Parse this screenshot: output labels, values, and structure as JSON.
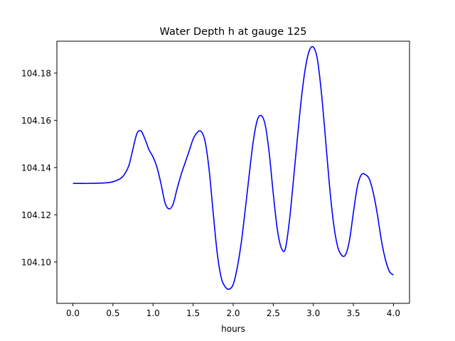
{
  "chart_data": {
    "type": "line",
    "title": "Water Depth h at gauge 125",
    "xlabel": "hours",
    "ylabel": "",
    "xlim": [
      -0.2,
      4.2
    ],
    "ylim": [
      104.0825,
      104.1935
    ],
    "xticks": [
      0.0,
      0.5,
      1.0,
      1.5,
      2.0,
      2.5,
      3.0,
      3.5,
      4.0
    ],
    "xtick_labels": [
      "0.0",
      "0.5",
      "1.0",
      "1.5",
      "2.0",
      "2.5",
      "3.0",
      "3.5",
      "4.0"
    ],
    "yticks": [
      104.1,
      104.12,
      104.14,
      104.16,
      104.18
    ],
    "ytick_labels": [
      "104.10",
      "104.12",
      "104.14",
      "104.16",
      "104.18"
    ],
    "grid": false,
    "line_color": "#0000ff",
    "series": [
      {
        "x": [
          0.0,
          0.2,
          0.4,
          0.5,
          0.6,
          0.65,
          0.7,
          0.75,
          0.8,
          0.85,
          0.9,
          0.95,
          1.0,
          1.05,
          1.1,
          1.15,
          1.2,
          1.25,
          1.3,
          1.35,
          1.4,
          1.45,
          1.5,
          1.55,
          1.6,
          1.65,
          1.7,
          1.75,
          1.8,
          1.85,
          1.9,
          1.95,
          2.0,
          2.05,
          2.1,
          2.15,
          2.2,
          2.25,
          2.3,
          2.35,
          2.4,
          2.45,
          2.5,
          2.55,
          2.6,
          2.65,
          2.7,
          2.75,
          2.8,
          2.85,
          2.9,
          2.95,
          3.0,
          3.05,
          3.1,
          3.15,
          3.2,
          3.25,
          3.3,
          3.35,
          3.4,
          3.45,
          3.5,
          3.55,
          3.6,
          3.65,
          3.7,
          3.75,
          3.8,
          3.85,
          3.9,
          3.95,
          4.0
        ],
        "y": [
          104.1333,
          104.1333,
          104.1335,
          104.134,
          104.1355,
          104.1375,
          104.141,
          104.148,
          104.1545,
          104.1555,
          104.152,
          104.1475,
          104.1445,
          104.14,
          104.133,
          104.125,
          104.1225,
          104.1245,
          104.131,
          104.137,
          104.142,
          104.147,
          104.152,
          104.1548,
          104.1553,
          104.151,
          104.139,
          104.121,
          104.104,
          104.0935,
          104.0895,
          104.0885,
          104.0905,
          104.0975,
          104.108,
          104.122,
          104.137,
          104.151,
          104.16,
          104.162,
          104.158,
          104.146,
          104.129,
          104.114,
          104.106,
          104.1055,
          104.117,
          104.134,
          104.152,
          104.169,
          104.182,
          104.1895,
          104.191,
          104.186,
          104.172,
          104.153,
          104.133,
          104.117,
          104.107,
          104.103,
          104.103,
          104.109,
          104.121,
          104.132,
          104.137,
          104.137,
          104.135,
          104.129,
          104.12,
          104.109,
          104.101,
          104.096,
          104.0945
        ]
      }
    ]
  }
}
